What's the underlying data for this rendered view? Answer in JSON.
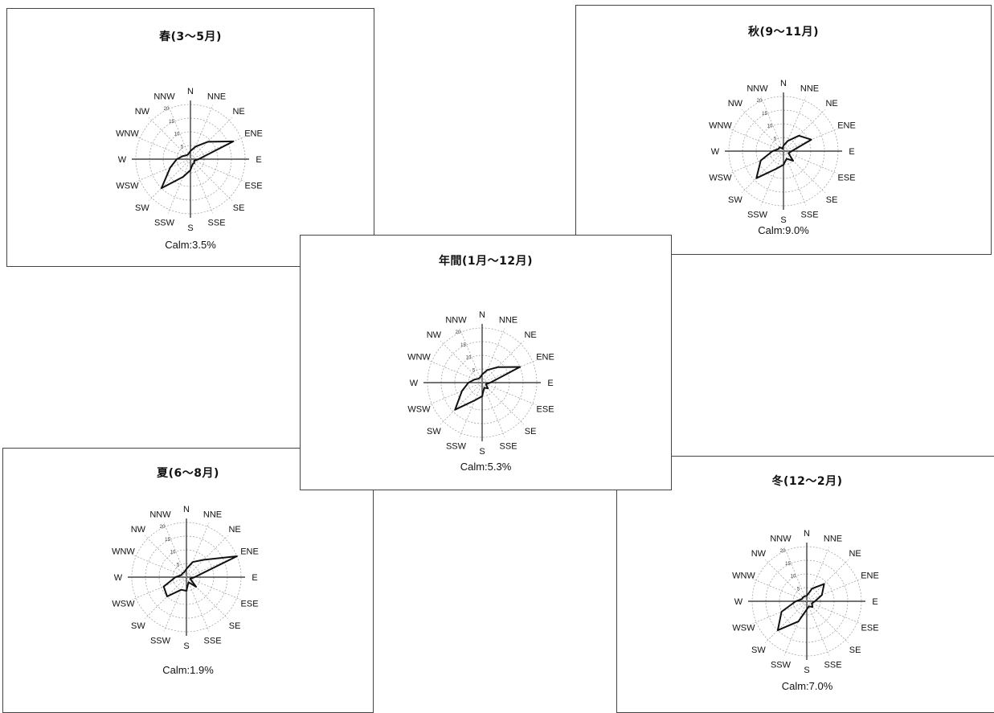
{
  "colors": {
    "outline": "#444444",
    "grid": "#9a9a9a",
    "axis": "#222222",
    "data_line": "#111111"
  },
  "chart_data": [
    {
      "type": "radar",
      "title": "春(3～5月)",
      "calm_label": "Calm:3.5%",
      "directions": [
        "N",
        "NNE",
        "NE",
        "ENE",
        "E",
        "ESE",
        "SE",
        "SSE",
        "S",
        "SSW",
        "SW",
        "WSW",
        "W",
        "WNW",
        "NW",
        "NNW"
      ],
      "radial_ticks": [
        "5",
        "10",
        "15",
        "20"
      ],
      "rmax": 20,
      "values": [
        3,
        5,
        9,
        17,
        3,
        1.5,
        2,
        2,
        4,
        7,
        15,
        8,
        5,
        3,
        2,
        2
      ]
    },
    {
      "type": "radar",
      "title": "秋(9～11月)",
      "calm_label": "Calm:9.0%",
      "directions": [
        "N",
        "NNE",
        "NE",
        "ENE",
        "E",
        "ESE",
        "SE",
        "SSE",
        "S",
        "SSW",
        "SW",
        "WSW",
        "W",
        "WNW",
        "NW",
        "NNW"
      ],
      "radial_ticks": [
        "5",
        "10",
        "15",
        "20"
      ],
      "rmax": 20,
      "values": [
        2,
        4,
        8,
        11,
        3,
        2,
        5,
        3,
        5,
        7,
        14,
        9,
        4,
        2,
        2,
        1
      ]
    },
    {
      "type": "radar",
      "title": "年間(1月～12月)",
      "calm_label": "Calm:5.3%",
      "directions": [
        "N",
        "NNE",
        "NE",
        "ENE",
        "E",
        "ESE",
        "SE",
        "SSE",
        "S",
        "SSW",
        "SW",
        "WSW",
        "W",
        "WNW",
        "NW",
        "NNW"
      ],
      "radial_ticks": [
        "5",
        "10",
        "15",
        "20"
      ],
      "rmax": 20,
      "values": [
        3,
        5,
        8,
        15,
        3,
        1.5,
        3,
        2,
        5,
        7,
        14,
        8,
        5,
        3,
        2,
        2
      ]
    },
    {
      "type": "radar",
      "title": "夏(6～8月)",
      "calm_label": "Calm:1.9%",
      "directions": [
        "N",
        "NNE",
        "NE",
        "ENE",
        "E",
        "ESE",
        "SE",
        "SSE",
        "S",
        "SSW",
        "SW",
        "WSW",
        "W",
        "WNW",
        "NW",
        "NNW"
      ],
      "radial_ticks": [
        "5",
        "10",
        "15",
        "20"
      ],
      "rmax": 20,
      "values": [
        3,
        6,
        9,
        20,
        3,
        1.5,
        5,
        2,
        5,
        5,
        10,
        9,
        4,
        2,
        2,
        2
      ]
    },
    {
      "type": "radar",
      "title": "冬(12～2月)",
      "calm_label": "Calm:7.0%",
      "directions": [
        "N",
        "NNE",
        "NE",
        "ENE",
        "E",
        "ESE",
        "SE",
        "SSE",
        "S",
        "SSW",
        "SW",
        "WSW",
        "W",
        "WNW",
        "NW",
        "NNW"
      ],
      "radial_ticks": [
        "5",
        "10",
        "15",
        "20"
      ],
      "rmax": 20,
      "values": [
        2,
        5,
        9,
        6,
        3,
        2,
        3,
        2,
        3,
        8,
        15,
        10,
        4,
        2,
        2,
        2
      ]
    }
  ]
}
